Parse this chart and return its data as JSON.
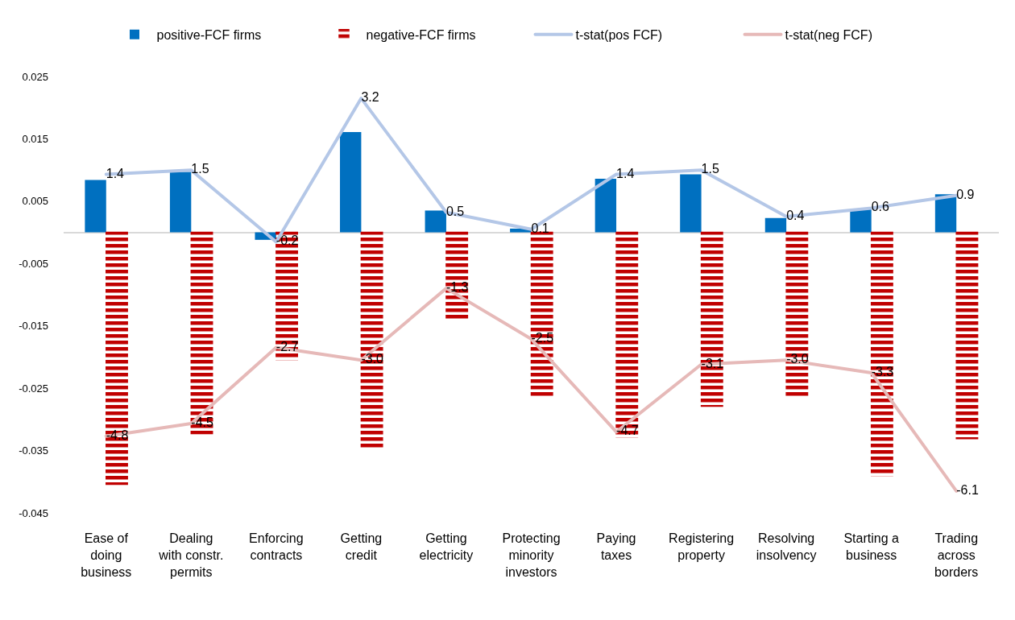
{
  "chart_data": {
    "type": "bar",
    "categories": [
      "Ease of\ndoing\nbusiness",
      "Dealing\nwith constr.\npermits",
      "Enforcing\ncontracts",
      "Getting\ncredit",
      "Getting\nelectricity",
      "Protecting\nminority\ninvestors",
      "Paying\ntaxes",
      "Registering\nproperty",
      "Resolving\ninsolvency",
      "Starting a\nbusiness",
      "Trading\nacross\nborders"
    ],
    "series": [
      {
        "name": "positive-FCF firms",
        "color": "#0070c0",
        "values": [
          0.0084,
          0.0097,
          -0.0012,
          0.0161,
          0.0035,
          0.0006,
          0.0086,
          0.0093,
          0.0023,
          0.0037,
          0.0061
        ]
      },
      {
        "name": "negative-FCF firms",
        "color": "#c00000",
        "values": [
          -0.0404,
          -0.0323,
          -0.0204,
          -0.0345,
          -0.014,
          -0.0263,
          -0.0328,
          -0.0279,
          -0.0264,
          -0.039,
          -0.0331
        ]
      },
      {
        "name": "t-stat(pos FCF)",
        "type": "line",
        "axis": "y2",
        "color": "#b4c7e7",
        "values": [
          1.4,
          1.5,
          -0.2,
          3.2,
          0.5,
          0.1,
          1.4,
          1.5,
          0.4,
          0.6,
          0.9
        ],
        "value_labels": [
          "1.4",
          "1.5",
          "-0.2",
          "3.2",
          "0.5",
          "0.1",
          "1.4",
          "1.5",
          "0.4",
          "0.6",
          "0.9"
        ]
      },
      {
        "name": "t-stat(neg FCF)",
        "type": "line",
        "axis": "y2",
        "color": "#e6b9b8",
        "values": [
          -4.8,
          -4.5,
          -2.7,
          -3.0,
          -1.3,
          -2.5,
          -4.7,
          -3.1,
          -3.0,
          -3.3,
          -6.1
        ],
        "value_labels": [
          "-4.8",
          "-4.5",
          "-2.7",
          "-3.0",
          "-1.3",
          "-2.5",
          "-4.7",
          "-3.1",
          "-3.0",
          "-3.3",
          "-6.1"
        ]
      }
    ],
    "ylim": [
      -0.045,
      0.025
    ],
    "yticks": [
      -0.045,
      -0.035,
      -0.025,
      -0.015,
      -0.005,
      0.005,
      0.015,
      0.025
    ],
    "legend": "top"
  }
}
